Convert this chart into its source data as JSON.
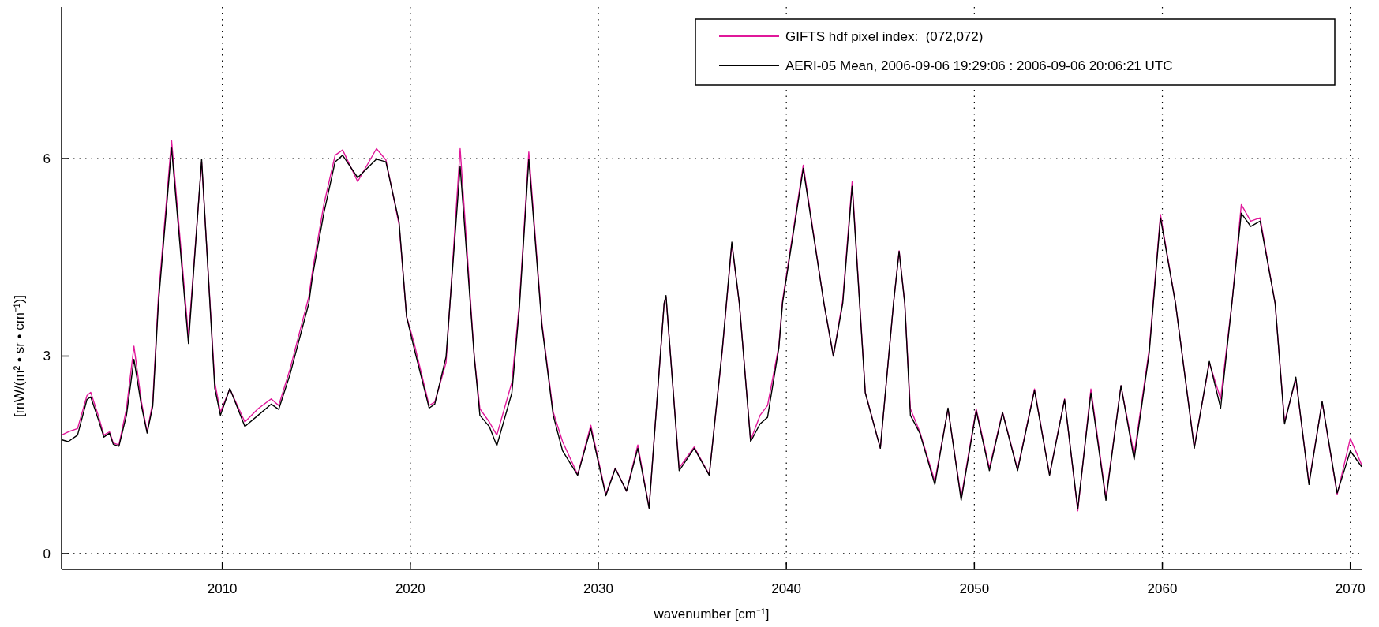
{
  "chart_data": {
    "type": "line",
    "xlabel": "wavenumber [cm⁻¹]",
    "ylabel": "[mW/(m² • sr • cm⁻¹)]",
    "x": [
      2001.45,
      2001.8,
      2002.3,
      2002.8,
      2003.0,
      2003.4,
      2003.7,
      2004.0,
      2004.2,
      2004.5,
      2004.9,
      2005.3,
      2005.7,
      2006.0,
      2006.3,
      2006.6,
      2007.3,
      2008.2,
      2008.9,
      2009.6,
      2009.9,
      2010.4,
      2011.2,
      2011.9,
      2012.6,
      2013.0,
      2013.6,
      2014.6,
      2014.8,
      2015.4,
      2016.0,
      2016.4,
      2017.2,
      2018.2,
      2018.7,
      2019.4,
      2019.8,
      2020.2,
      2021.0,
      2021.3,
      2021.9,
      2022.65,
      2023.4,
      2023.7,
      2024.2,
      2024.6,
      2025.4,
      2025.8,
      2026.3,
      2027.0,
      2027.6,
      2028.1,
      2028.9,
      2029.6,
      2030.4,
      2030.9,
      2031.5,
      2032.1,
      2032.7,
      2033.5,
      2033.6,
      2034.3,
      2035.1,
      2035.9,
      2036.6,
      2037.1,
      2037.5,
      2038.1,
      2038.6,
      2039.0,
      2039.6,
      2039.8,
      2040.9,
      2042.0,
      2042.5,
      2043.0,
      2043.5,
      2044.2,
      2045.0,
      2045.7,
      2046.0,
      2046.3,
      2046.6,
      2047.1,
      2047.9,
      2048.6,
      2049.3,
      2050.1,
      2050.8,
      2051.5,
      2052.3,
      2053.2,
      2054.0,
      2054.8,
      2055.5,
      2056.2,
      2057.0,
      2057.8,
      2058.5,
      2059.3,
      2059.9,
      2060.7,
      2061.7,
      2062.5,
      2063.1,
      2063.7,
      2064.2,
      2064.7,
      2065.2,
      2066.0,
      2066.5,
      2067.1,
      2067.8,
      2068.5,
      2069.3,
      2070.0,
      2070.6
    ],
    "series": [
      {
        "name": "GIFTS hdf pixel index:  (072,072)",
        "color": "#e0189a",
        "values": [
          1.8,
          1.85,
          1.9,
          2.4,
          2.45,
          2.1,
          1.8,
          1.85,
          1.68,
          1.65,
          2.2,
          3.15,
          2.3,
          1.85,
          2.3,
          3.9,
          6.28,
          3.3,
          5.95,
          2.6,
          2.15,
          2.5,
          2.0,
          2.2,
          2.35,
          2.25,
          2.8,
          3.9,
          4.3,
          5.3,
          6.05,
          6.13,
          5.65,
          6.15,
          5.98,
          5.0,
          3.6,
          3.2,
          2.25,
          2.3,
          2.9,
          6.15,
          3.0,
          2.2,
          2.0,
          1.8,
          2.6,
          3.8,
          6.1,
          3.5,
          2.15,
          1.7,
          1.2,
          1.95,
          0.9,
          1.3,
          0.95,
          1.65,
          0.7,
          3.8,
          3.9,
          1.3,
          1.62,
          1.2,
          3.1,
          4.7,
          3.8,
          1.72,
          2.1,
          2.25,
          3.15,
          3.85,
          5.9,
          3.8,
          3.0,
          3.85,
          5.65,
          2.45,
          1.6,
          3.8,
          4.6,
          3.8,
          2.2,
          1.85,
          1.1,
          2.2,
          0.85,
          2.2,
          1.3,
          2.15,
          1.28,
          2.5,
          1.2,
          2.35,
          0.65,
          2.5,
          0.85,
          2.55,
          1.5,
          3.1,
          5.15,
          3.8,
          1.62,
          2.9,
          2.35,
          3.8,
          5.3,
          5.05,
          5.1,
          3.8,
          2.0,
          2.65,
          1.08,
          2.3,
          0.9,
          1.75,
          1.35
        ]
      },
      {
        "name": "AERI-05 Mean, 2006-09-06 19:29:06 : 2006-09-06 20:06:21 UTC",
        "color": "#000000",
        "values": [
          1.73,
          1.7,
          1.8,
          2.34,
          2.38,
          2.04,
          1.77,
          1.83,
          1.66,
          1.63,
          2.1,
          2.95,
          2.24,
          1.83,
          2.24,
          3.8,
          6.16,
          3.19,
          5.99,
          2.51,
          2.1,
          2.51,
          1.93,
          2.1,
          2.27,
          2.19,
          2.72,
          3.8,
          4.22,
          5.17,
          5.95,
          6.05,
          5.71,
          5.99,
          5.95,
          5.04,
          3.6,
          3.12,
          2.21,
          2.27,
          2.99,
          5.88,
          2.99,
          2.1,
          1.93,
          1.64,
          2.44,
          3.73,
          5.99,
          3.46,
          2.1,
          1.56,
          1.19,
          1.9,
          0.88,
          1.29,
          0.95,
          1.6,
          0.69,
          3.8,
          3.92,
          1.26,
          1.6,
          1.19,
          3.12,
          4.73,
          3.8,
          1.7,
          1.97,
          2.07,
          3.12,
          3.81,
          5.85,
          3.8,
          3.0,
          3.8,
          5.58,
          2.44,
          1.6,
          3.8,
          4.59,
          3.8,
          2.1,
          1.83,
          1.05,
          2.21,
          0.81,
          2.17,
          1.26,
          2.14,
          1.26,
          2.48,
          1.19,
          2.34,
          0.68,
          2.44,
          0.81,
          2.55,
          1.43,
          3.05,
          5.1,
          3.8,
          1.6,
          2.92,
          2.21,
          3.8,
          5.17,
          4.97,
          5.05,
          3.8,
          1.97,
          2.68,
          1.05,
          2.31,
          0.92,
          1.56,
          1.32
        ]
      }
    ],
    "xlim": [
      2001.45,
      2070.6
    ],
    "ylim": [
      -0.24,
      8.3
    ],
    "xticks": [
      2010,
      2020,
      2030,
      2040,
      2050,
      2060,
      2070
    ],
    "yticks": [
      0,
      3,
      6
    ],
    "grid": true,
    "legend": "top right",
    "line_style": "solid",
    "marker": "none"
  }
}
